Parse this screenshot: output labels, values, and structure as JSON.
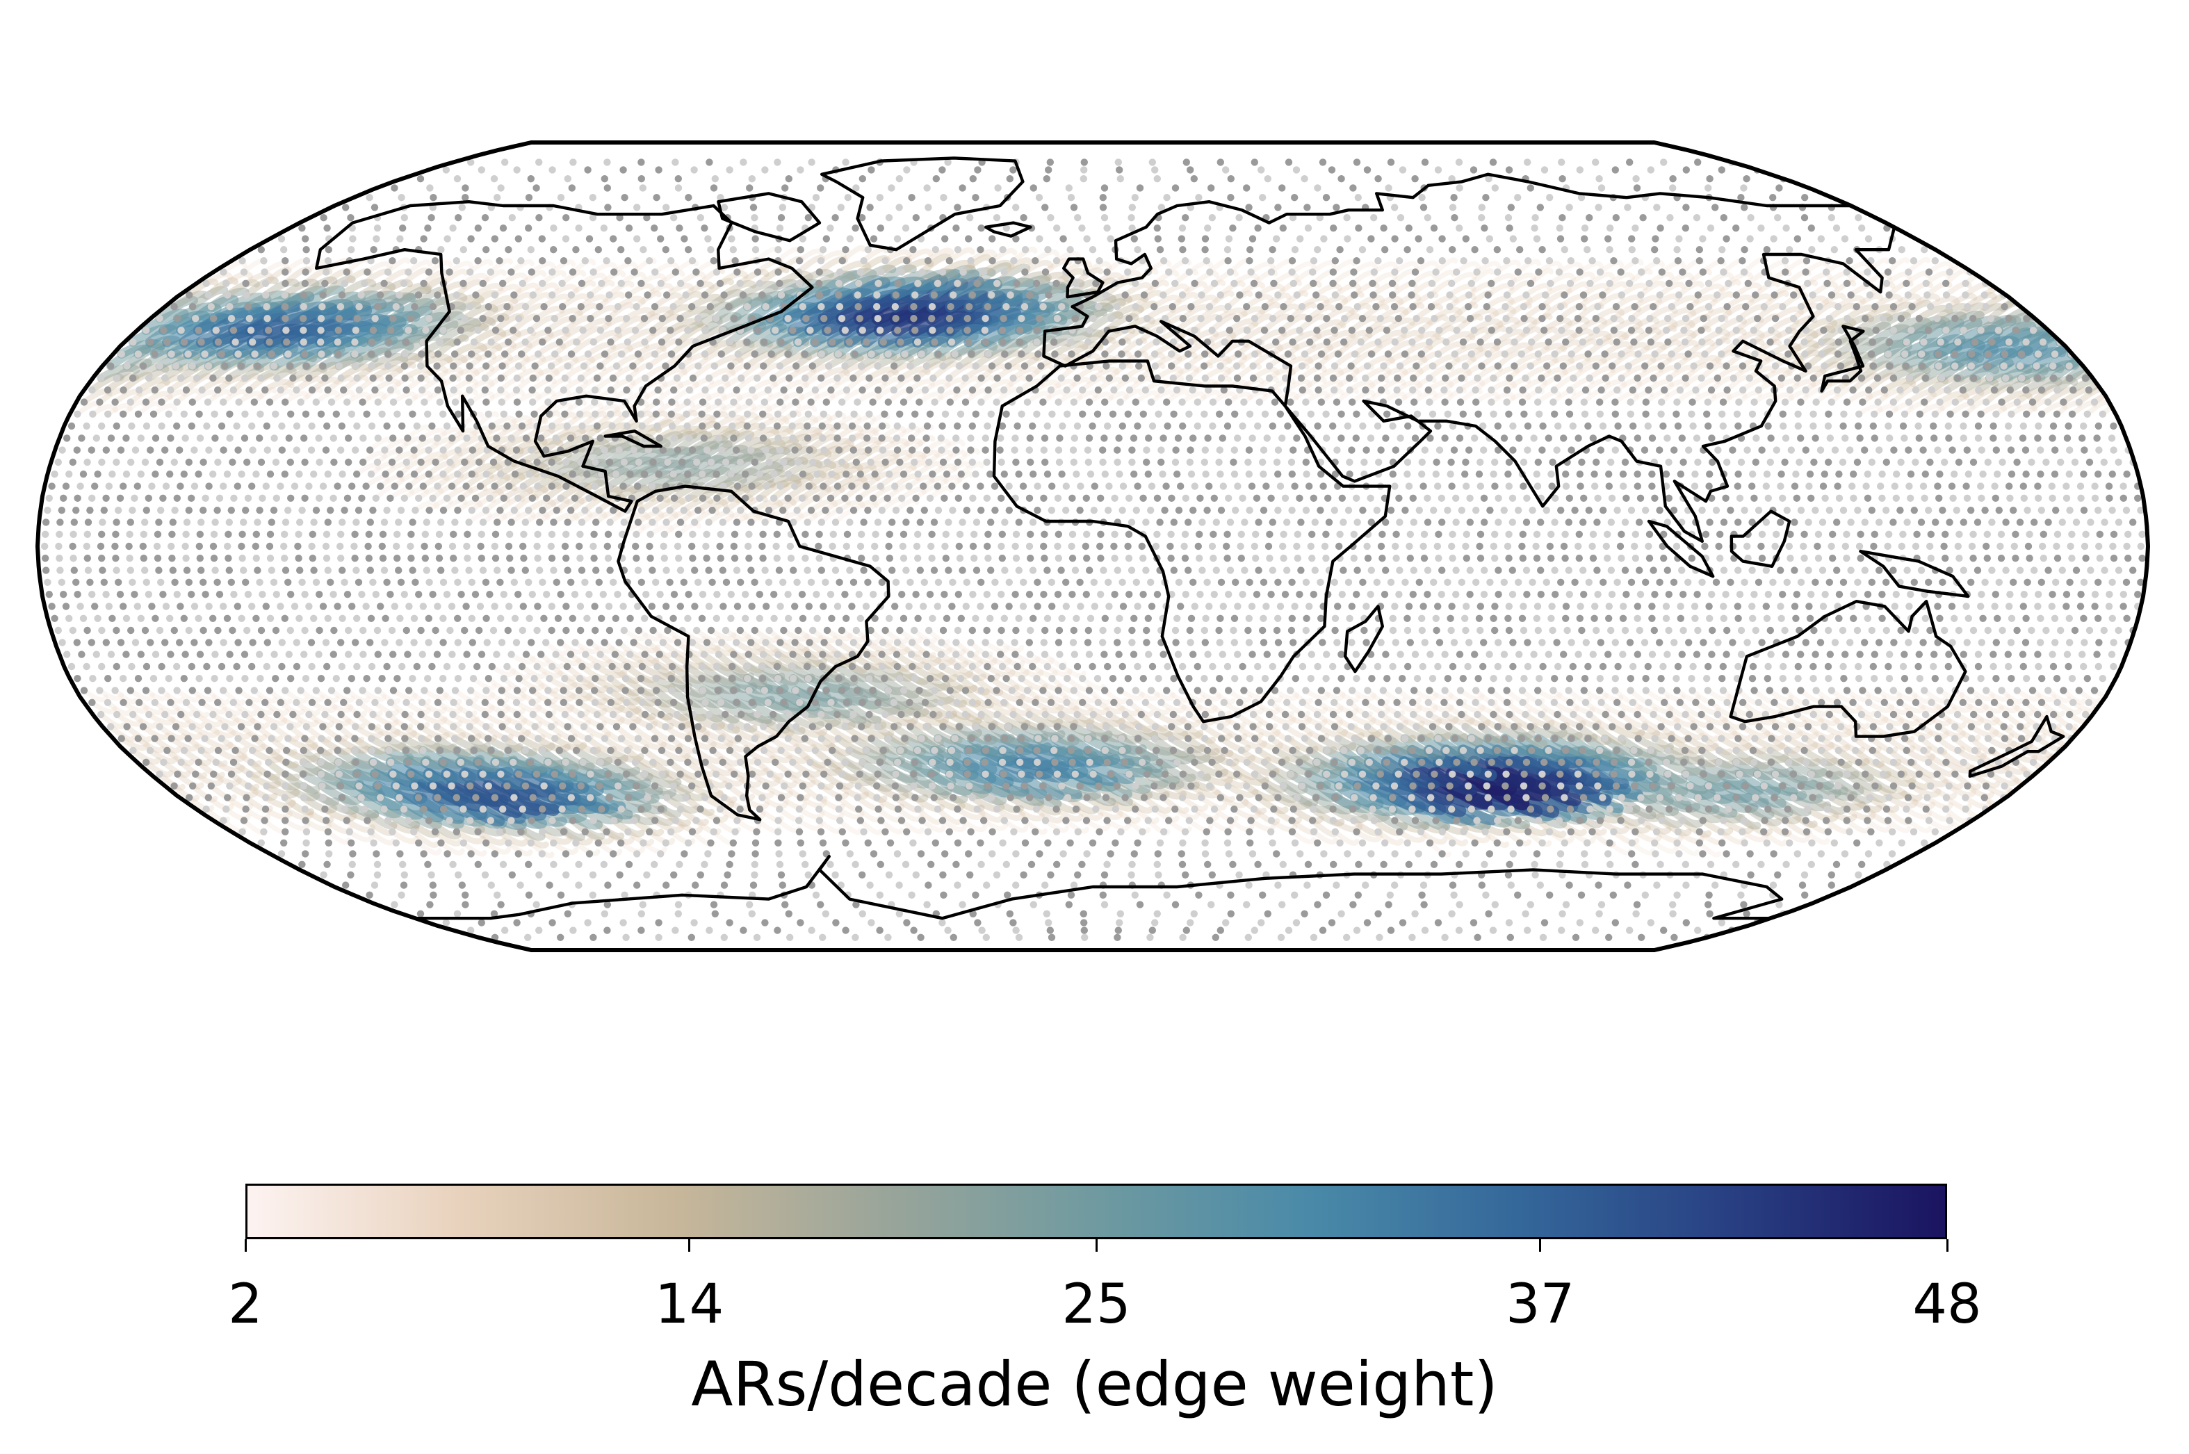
{
  "map": {
    "projection": "Robinson",
    "description_features": [
      "atmospheric river network",
      "coastlines",
      "graph nodes",
      "graph edges"
    ]
  },
  "colorbar": {
    "label": "ARs/decade (edge weight)",
    "ticks": [
      "2",
      "14",
      "25",
      "37",
      "48"
    ],
    "tick_values": [
      2,
      14,
      25,
      37,
      48
    ],
    "range": [
      2,
      48
    ],
    "colormap": [
      "#fdf3f1",
      "#e8d2bd",
      "#c8b79a",
      "#9aa59a",
      "#6f9aa0",
      "#4a8aa8",
      "#34679a",
      "#283f82",
      "#1b1460"
    ]
  },
  "chart_data": {
    "type": "heatmap",
    "title": "",
    "colorbar_label": "ARs/decade (edge weight)",
    "value_range": [
      2,
      48
    ],
    "hotspots": [
      {
        "region": "North Pacific",
        "lon": -155,
        "lat": 42,
        "value": 38
      },
      {
        "region": "North Atlantic",
        "lon": -38,
        "lat": 45,
        "value": 44
      },
      {
        "region": "Northwest Pacific",
        "lon": 165,
        "lat": 38,
        "value": 30
      },
      {
        "region": "South Pacific",
        "lon": -120,
        "lat": -47,
        "value": 40
      },
      {
        "region": "South Atlantic",
        "lon": -15,
        "lat": -42,
        "value": 33
      },
      {
        "region": "South Indian Ocean",
        "lon": 72,
        "lat": -45,
        "value": 47
      },
      {
        "region": "South of Australia",
        "lon": 120,
        "lat": -47,
        "value": 26
      },
      {
        "region": "Caribbean",
        "lon": -75,
        "lat": 15,
        "value": 22
      },
      {
        "region": "Subtropical South America",
        "lon": -55,
        "lat": -28,
        "value": 24
      }
    ]
  }
}
